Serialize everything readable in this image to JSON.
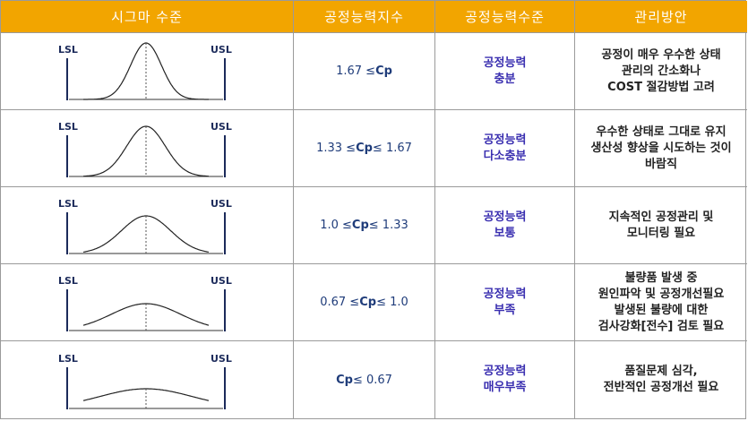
{
  "header": {
    "col_sigma": "시그마 수준",
    "col_index": "공정능력지수",
    "col_level": "공정능력수준",
    "col_mgmt": "관리방안"
  },
  "curve_labels": {
    "lsl": "LSL",
    "usl": "USL"
  },
  "rows": [
    {
      "cp_pre": "1.67 ≤ ",
      "cp_sym": "Cp",
      "cp_post": "",
      "level_1": "공정능력",
      "level_2": "충분",
      "mgmt": [
        "공정이 매우 우수한 상태",
        "관리의 간소화나",
        "COST 절감방법 고려"
      ]
    },
    {
      "cp_pre": "1.33 ≤ ",
      "cp_sym": "Cp",
      "cp_post": " ≤ 1.67",
      "level_1": "공정능력",
      "level_2": "다소충분",
      "mgmt": [
        "우수한 상태로 그대로 유지",
        "생산성 향상을 시도하는 것이",
        "바람직"
      ]
    },
    {
      "cp_pre": "1.0 ≤ ",
      "cp_sym": "Cp",
      "cp_post": " ≤ 1.33",
      "level_1": "공정능력",
      "level_2": "보통",
      "mgmt": [
        "지속적인 공정관리 및",
        "모니터링 필요"
      ]
    },
    {
      "cp_pre": "0.67 ≤ ",
      "cp_sym": "Cp",
      "cp_post": " ≤ 1.0",
      "level_1": "공정능력",
      "level_2": "부족",
      "mgmt": [
        "불량품 발생 중",
        "원인파악 및 공정개선필요",
        "발생된 불량에 대한",
        "검사강화[전수] 검토 필요"
      ]
    },
    {
      "cp_pre": "",
      "cp_sym": "Cp",
      "cp_post": " ≤ 0.67",
      "level_1": "공정능력",
      "level_2": "매우부족",
      "mgmt": [
        "품질문제 심각,",
        "전반적인 공정개선 필요"
      ]
    }
  ]
}
